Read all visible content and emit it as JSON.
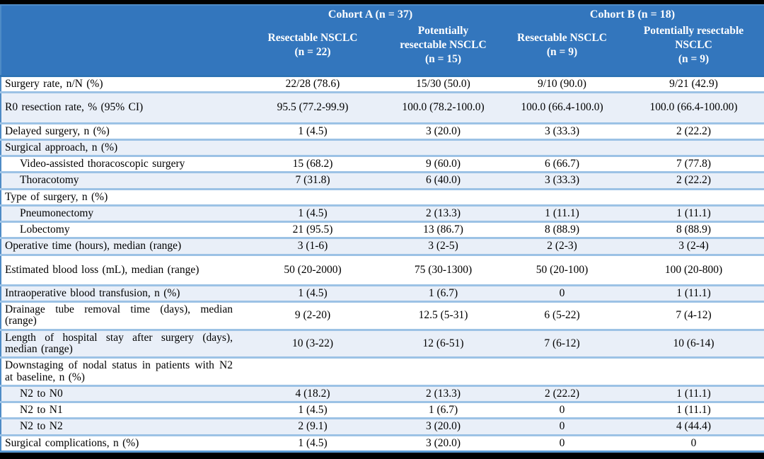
{
  "colors": {
    "frame_bg": "#000000",
    "header_bg": "#3376BD",
    "header_text": "#FFFFFF",
    "header_divider": "#2E74B5",
    "row_band_bg": "#E9EFF8",
    "row_border": "#9CC2E5",
    "outer_border": "#4E8BC6",
    "body_text": "#000000"
  },
  "header": {
    "cohorts": [
      {
        "label": "Cohort A (n = 37)"
      },
      {
        "label": "Cohort B (n = 18)"
      }
    ],
    "columns": [
      {
        "lines": [
          "Resectable NSCLC"
        ],
        "n": "(n = 22)"
      },
      {
        "lines": [
          "Potentially",
          "resectable NSCLC"
        ],
        "n": "(n = 15)"
      },
      {
        "lines": [
          "Resectable NSCLC"
        ],
        "n": "(n = 9)"
      },
      {
        "lines": [
          "Potentially resectable",
          "NSCLC"
        ],
        "n": "(n = 9)"
      }
    ]
  },
  "rows": [
    {
      "label": "Surgery rate, n/N (%)",
      "indent": false,
      "values": [
        "22/28 (78.6)",
        "15/30 (50.0)",
        "9/10 (90.0)",
        "9/21 (42.9)"
      ]
    },
    {
      "label": "R0 resection rate, % (95% CI)",
      "indent": false,
      "values": [
        "95.5 (77.2-99.9)",
        "100.0 (78.2-100.0)",
        "100.0 (66.4-100.0)",
        "100.0 (66.4-100.00)"
      ]
    },
    {
      "label": "Delayed surgery, n (%)",
      "indent": false,
      "values": [
        "1 (4.5)",
        "3 (20.0)",
        "3 (33.3)",
        "2 (22.2)"
      ]
    },
    {
      "label": "Surgical approach, n (%)",
      "indent": false,
      "values": [
        "",
        "",
        "",
        ""
      ]
    },
    {
      "label": "Video-assisted thoracoscopic surgery",
      "indent": true,
      "values": [
        "15 (68.2)",
        "9 (60.0)",
        "6 (66.7)",
        "7 (77.8)"
      ]
    },
    {
      "label": "Thoracotomy",
      "indent": true,
      "values": [
        "7 (31.8)",
        "6 (40.0)",
        "3 (33.3)",
        "2 (22.2)"
      ]
    },
    {
      "label": "Type of surgery, n (%)",
      "indent": false,
      "values": [
        "",
        "",
        "",
        ""
      ]
    },
    {
      "label": "Pneumonectomy",
      "indent": true,
      "values": [
        "1 (4.5)",
        "2 (13.3)",
        "1 (11.1)",
        "1 (11.1)"
      ]
    },
    {
      "label": "Lobectomy",
      "indent": true,
      "values": [
        "21 (95.5)",
        "13 (86.7)",
        "8 (88.9)",
        "8 (88.9)"
      ]
    },
    {
      "label": "Operative time (hours), median (range)",
      "indent": false,
      "values": [
        "3 (1-6)",
        "3 (2-5)",
        "2 (2-3)",
        "3 (2-4)"
      ]
    },
    {
      "label": "Estimated blood loss (mL), median (range)",
      "indent": false,
      "values": [
        "50 (20-2000)",
        "75 (30-1300)",
        "50 (20-100)",
        "100 (20-800)"
      ]
    },
    {
      "label": "Intraoperative blood transfusion, n (%)",
      "indent": false,
      "values": [
        "1 (4.5)",
        "1 (6.7)",
        "0",
        "1 (11.1)"
      ]
    },
    {
      "label": "Drainage tube removal time (days), median (range)",
      "indent": false,
      "values": [
        "9 (2-20)",
        "12.5 (5-31)",
        "6 (5-22)",
        "7 (4-12)"
      ]
    },
    {
      "label": "Length of hospital stay after surgery (days), median (range)",
      "indent": false,
      "values": [
        "10 (3-22)",
        "12 (6-51)",
        "7 (6-12)",
        "10 (6-14)"
      ]
    },
    {
      "label": "Downstaging of nodal status in patients with N2 at baseline, n (%)",
      "indent": false,
      "values": [
        "",
        "",
        "",
        ""
      ]
    },
    {
      "label": "N2 to N0",
      "indent": true,
      "values": [
        "4 (18.2)",
        "2 (13.3)",
        "2 (22.2)",
        "1 (11.1)"
      ]
    },
    {
      "label": "N2 to N1",
      "indent": true,
      "values": [
        "1 (4.5)",
        "1 (6.7)",
        "0",
        "1 (11.1)"
      ]
    },
    {
      "label": "N2 to N2",
      "indent": true,
      "values": [
        "2 (9.1)",
        "3 (20.0)",
        "0",
        "4 (44.4)"
      ]
    },
    {
      "label": "Surgical complications, n (%)",
      "indent": false,
      "values": [
        "1 (4.5)",
        "3 (20.0)",
        "0",
        "0"
      ]
    }
  ]
}
